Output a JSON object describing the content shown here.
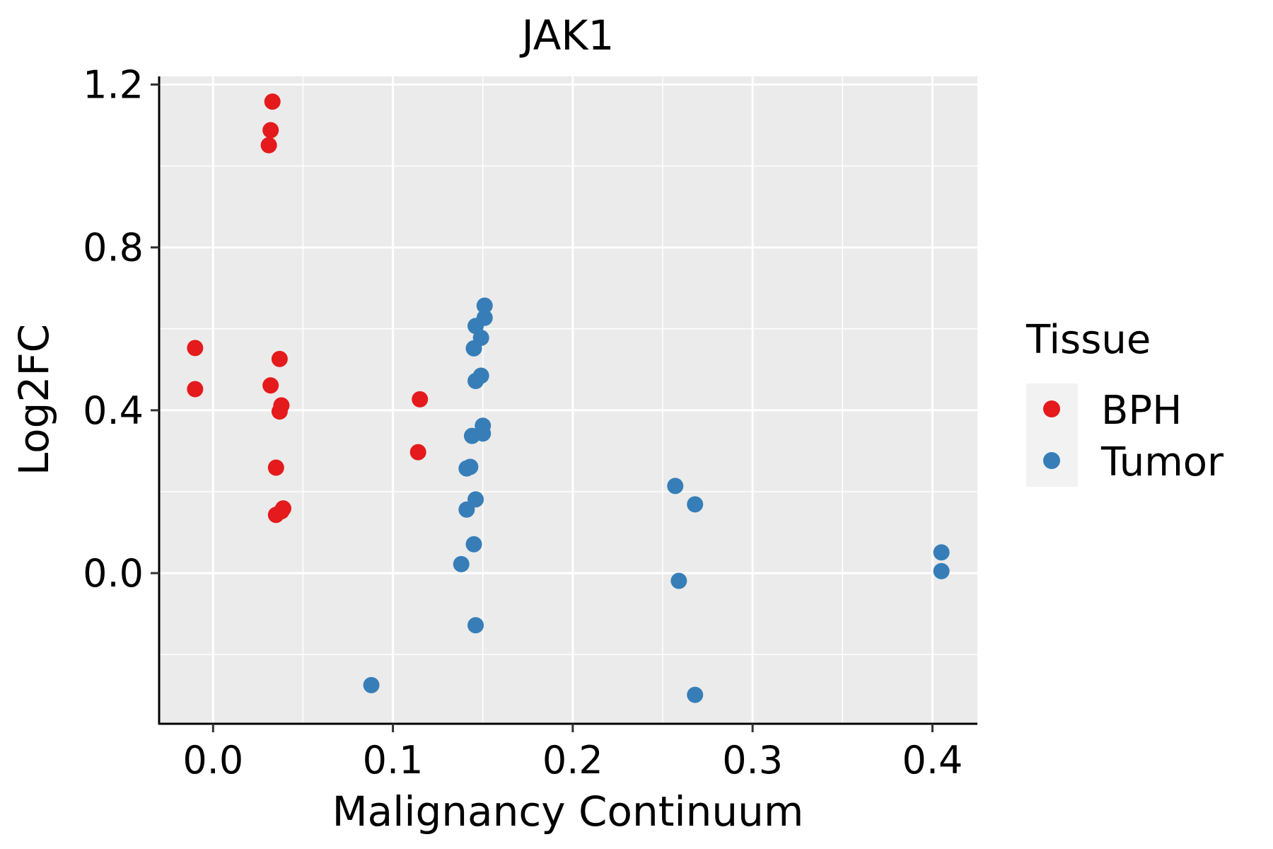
{
  "chart_data": {
    "type": "scatter",
    "title": "JAK1",
    "xlabel": "Malignancy Continuum",
    "ylabel": "Log2FC",
    "xlim": [
      -0.03,
      0.425
    ],
    "ylim": [
      -0.37,
      1.22
    ],
    "xticks": [
      0.0,
      0.1,
      0.2,
      0.3,
      0.4
    ],
    "xtick_labels": [
      "0.0",
      "0.1",
      "0.2",
      "0.3",
      "0.4"
    ],
    "yticks": [
      0.0,
      0.4,
      0.8,
      1.2
    ],
    "ytick_labels": [
      "0.0",
      "0.4",
      "0.8",
      "1.2"
    ],
    "grid": true,
    "legend": {
      "title": "Tissue",
      "position": "right",
      "entries": [
        {
          "label": "BPH",
          "color": "#e41a1c"
        },
        {
          "label": "Tumor",
          "color": "#377eb8"
        }
      ]
    },
    "series": [
      {
        "name": "BPH",
        "color": "#e41a1c",
        "points": [
          {
            "x": -0.01,
            "y": 0.553
          },
          {
            "x": -0.01,
            "y": 0.452
          },
          {
            "x": 0.033,
            "y": 1.158
          },
          {
            "x": 0.032,
            "y": 1.088
          },
          {
            "x": 0.031,
            "y": 1.051
          },
          {
            "x": 0.037,
            "y": 0.526
          },
          {
            "x": 0.032,
            "y": 0.461
          },
          {
            "x": 0.038,
            "y": 0.412
          },
          {
            "x": 0.037,
            "y": 0.397
          },
          {
            "x": 0.035,
            "y": 0.259
          },
          {
            "x": 0.039,
            "y": 0.159
          },
          {
            "x": 0.038,
            "y": 0.152
          },
          {
            "x": 0.035,
            "y": 0.143
          },
          {
            "x": 0.115,
            "y": 0.427
          },
          {
            "x": 0.114,
            "y": 0.297
          }
        ]
      },
      {
        "name": "Tumor",
        "color": "#377eb8",
        "points": [
          {
            "x": 0.151,
            "y": 0.657
          },
          {
            "x": 0.151,
            "y": 0.627
          },
          {
            "x": 0.146,
            "y": 0.607
          },
          {
            "x": 0.149,
            "y": 0.578
          },
          {
            "x": 0.145,
            "y": 0.552
          },
          {
            "x": 0.149,
            "y": 0.485
          },
          {
            "x": 0.146,
            "y": 0.472
          },
          {
            "x": 0.15,
            "y": 0.362
          },
          {
            "x": 0.15,
            "y": 0.343
          },
          {
            "x": 0.144,
            "y": 0.337
          },
          {
            "x": 0.143,
            "y": 0.261
          },
          {
            "x": 0.141,
            "y": 0.257
          },
          {
            "x": 0.146,
            "y": 0.181
          },
          {
            "x": 0.141,
            "y": 0.156
          },
          {
            "x": 0.145,
            "y": 0.071
          },
          {
            "x": 0.138,
            "y": 0.022
          },
          {
            "x": 0.146,
            "y": -0.128
          },
          {
            "x": 0.088,
            "y": -0.275
          },
          {
            "x": 0.257,
            "y": 0.214
          },
          {
            "x": 0.268,
            "y": 0.169
          },
          {
            "x": 0.259,
            "y": -0.019
          },
          {
            "x": 0.268,
            "y": -0.299
          },
          {
            "x": 0.405,
            "y": 0.051
          },
          {
            "x": 0.405,
            "y": 0.005
          }
        ]
      }
    ]
  }
}
